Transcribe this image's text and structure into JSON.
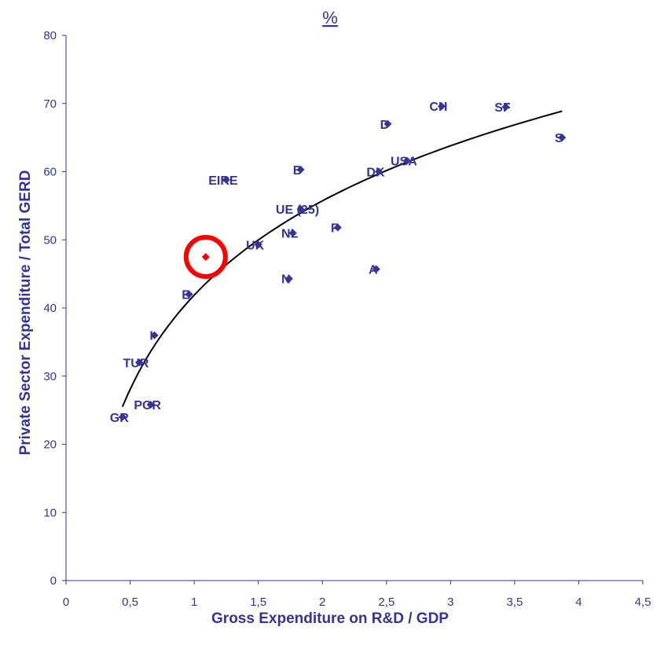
{
  "chart_data": {
    "type": "scatter",
    "title": "%",
    "xlabel": "Gross Expenditure on R&D / GDP",
    "ylabel": "Private Sector Expenditure / Total GERD",
    "xlim": [
      0,
      4.5
    ],
    "ylim": [
      0,
      80
    ],
    "x_ticks": [
      "0",
      "0,5",
      "1",
      "1,5",
      "2",
      "2,5",
      "3",
      "3,5",
      "4",
      "4,5"
    ],
    "y_ticks": [
      "0",
      "10",
      "20",
      "30",
      "40",
      "50",
      "60",
      "70",
      "80"
    ],
    "grid": false,
    "trendline": "logarithmic",
    "colors": {
      "points": "#333399",
      "highlight": "#ff0000",
      "trend": "#000000",
      "text": "#333399"
    },
    "points": [
      {
        "label": "GR",
        "x": 0.44,
        "y": 24
      },
      {
        "label": "POR",
        "x": 0.66,
        "y": 25.8
      },
      {
        "label": "TUR",
        "x": 0.57,
        "y": 32
      },
      {
        "label": "I",
        "x": 0.69,
        "y": 36
      },
      {
        "label": "E",
        "x": 0.96,
        "y": 42
      },
      {
        "label": "",
        "x": 1.09,
        "y": 47.5,
        "highlight": true
      },
      {
        "label": "UK",
        "x": 1.5,
        "y": 49.3
      },
      {
        "label": "EIRE",
        "x": 1.25,
        "y": 58.8
      },
      {
        "label": "N",
        "x": 1.74,
        "y": 44.3
      },
      {
        "label": "NL",
        "x": 1.77,
        "y": 51
      },
      {
        "label": "UE (25)",
        "x": 1.83,
        "y": 54.5
      },
      {
        "label": "B",
        "x": 1.83,
        "y": 60.3
      },
      {
        "label": "F",
        "x": 2.12,
        "y": 51.8
      },
      {
        "label": "A",
        "x": 2.42,
        "y": 45.7
      },
      {
        "label": "DK",
        "x": 2.44,
        "y": 60
      },
      {
        "label": "D",
        "x": 2.51,
        "y": 67
      },
      {
        "label": "USA",
        "x": 2.66,
        "y": 61.6
      },
      {
        "label": "CH",
        "x": 2.93,
        "y": 69.6
      },
      {
        "label": "SF",
        "x": 3.43,
        "y": 69.5
      },
      {
        "label": "S",
        "x": 3.87,
        "y": 65
      }
    ]
  }
}
